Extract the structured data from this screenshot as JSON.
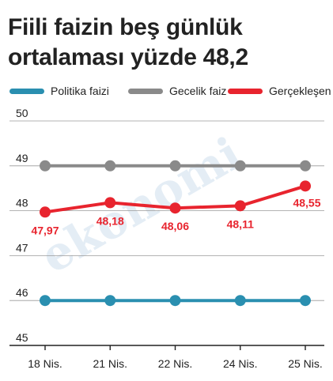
{
  "title": "Fiili faizin beş günlük ortalaması yüzde 48,2",
  "watermark": "ekonomi",
  "chart_data": {
    "type": "line",
    "categories": [
      "18 Nis.",
      "21 Nis.",
      "22 Nis.",
      "24 Nis.",
      "25 Nis."
    ],
    "ylim": [
      45,
      50
    ],
    "yticks": [
      "45",
      "46",
      "47",
      "48",
      "49",
      "50"
    ],
    "grid": true,
    "legend": "top",
    "series": [
      {
        "name": "Politika faizi",
        "color": "#2a8fb0",
        "values": [
          46,
          46,
          46,
          46,
          46
        ],
        "labels": []
      },
      {
        "name": "Gecelik faiz",
        "color": "#8a8a8a",
        "values": [
          49,
          49,
          49,
          49,
          49
        ],
        "labels": []
      },
      {
        "name": "Gerçekleşen",
        "color": "#e8242e",
        "values": [
          47.97,
          48.18,
          48.06,
          48.11,
          48.55
        ],
        "labels": [
          "47,97",
          "48,18",
          "48,06",
          "48,11",
          "48,55"
        ]
      }
    ]
  }
}
